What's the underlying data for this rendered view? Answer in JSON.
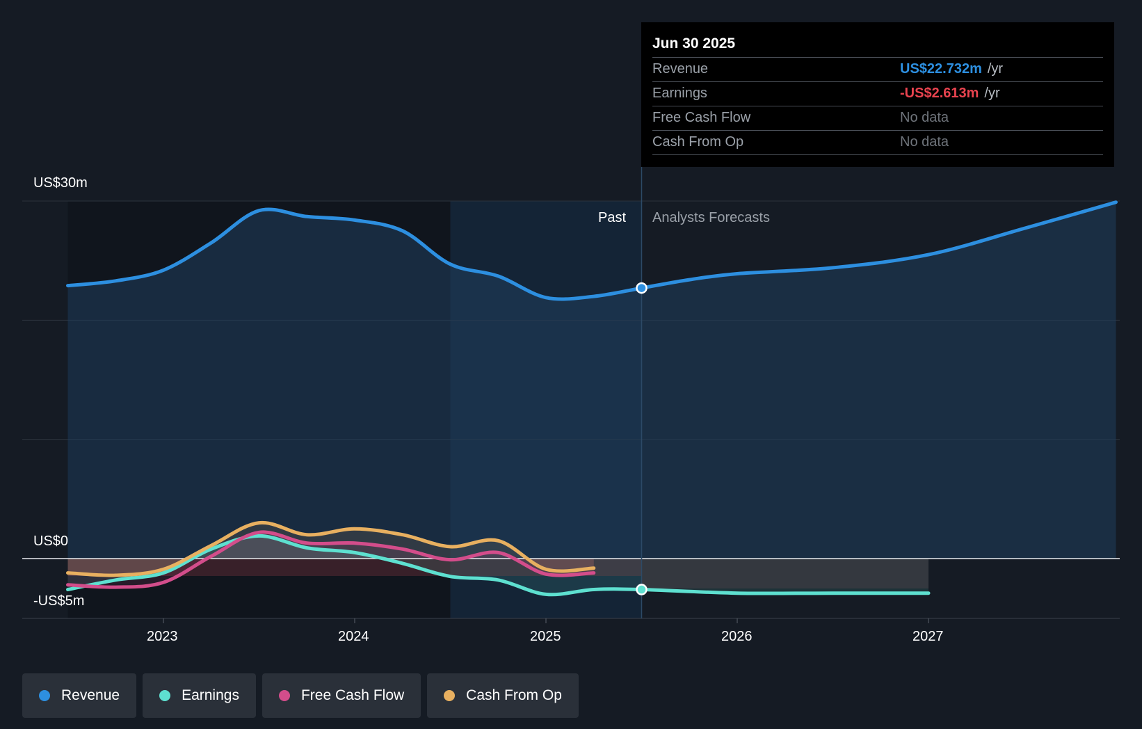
{
  "tooltip": {
    "date": "Jun 30 2025",
    "rows": [
      {
        "label": "Revenue",
        "value": "US$22.732m",
        "unit": "/yr",
        "color": "#2d8fe0"
      },
      {
        "label": "Earnings",
        "value": "-US$2.613m",
        "unit": "/yr",
        "color": "#e8434f"
      },
      {
        "label": "Free Cash Flow",
        "value": "No data",
        "unit": "",
        "color": "#6f747b"
      },
      {
        "label": "Cash From Op",
        "value": "No data",
        "unit": "",
        "color": "#6f747b"
      }
    ]
  },
  "labels": {
    "past": "Past",
    "forecast": "Analysts Forecasts"
  },
  "legend": [
    {
      "label": "Revenue",
      "color": "#2d8fe0"
    },
    {
      "label": "Earnings",
      "color": "#5ee0d0"
    },
    {
      "label": "Free Cash Flow",
      "color": "#d34d8b"
    },
    {
      "label": "Cash From Op",
      "color": "#e8b060"
    }
  ],
  "chart_data": {
    "type": "line",
    "title": "",
    "xlabel": "",
    "ylabel": "",
    "ylim": [
      -5,
      30
    ],
    "y_ticks": [
      {
        "value": 30,
        "label": "US$30m"
      },
      {
        "value": 0,
        "label": "US$0"
      },
      {
        "value": -5,
        "label": "-US$5m"
      }
    ],
    "x_ticks": [
      {
        "value": 2023,
        "label": "2023"
      },
      {
        "value": 2024,
        "label": "2024"
      },
      {
        "value": 2025,
        "label": "2025"
      },
      {
        "value": 2026,
        "label": "2026"
      },
      {
        "value": 2027,
        "label": "2027"
      }
    ],
    "xlim": [
      2022.25,
      2027.98
    ],
    "past_end": 2025.5,
    "highlight_start": 2024.5,
    "series": [
      {
        "name": "Revenue",
        "color": "#2d8fe0",
        "points": [
          [
            2022.5,
            22.9
          ],
          [
            2022.75,
            23.3
          ],
          [
            2023.0,
            24.2
          ],
          [
            2023.25,
            26.5
          ],
          [
            2023.5,
            29.2
          ],
          [
            2023.75,
            28.7
          ],
          [
            2024.0,
            28.4
          ],
          [
            2024.25,
            27.5
          ],
          [
            2024.5,
            24.7
          ],
          [
            2024.75,
            23.7
          ],
          [
            2025.0,
            21.9
          ],
          [
            2025.25,
            22.0
          ],
          [
            2025.5,
            22.7
          ],
          [
            2025.75,
            23.4
          ],
          [
            2026.0,
            23.9
          ],
          [
            2026.5,
            24.4
          ],
          [
            2027.0,
            25.5
          ],
          [
            2027.5,
            27.7
          ],
          [
            2027.98,
            29.9
          ]
        ]
      },
      {
        "name": "Earnings",
        "color": "#5ee0d0",
        "points": [
          [
            2022.5,
            -2.6
          ],
          [
            2022.75,
            -1.8
          ],
          [
            2023.0,
            -1.2
          ],
          [
            2023.25,
            0.8
          ],
          [
            2023.5,
            1.9
          ],
          [
            2023.75,
            0.9
          ],
          [
            2024.0,
            0.5
          ],
          [
            2024.25,
            -0.4
          ],
          [
            2024.5,
            -1.5
          ],
          [
            2024.75,
            -1.8
          ],
          [
            2025.0,
            -3.0
          ],
          [
            2025.25,
            -2.6
          ],
          [
            2025.5,
            -2.6
          ],
          [
            2026.0,
            -2.9
          ],
          [
            2026.5,
            -2.9
          ],
          [
            2027.0,
            -2.9
          ]
        ]
      },
      {
        "name": "Free Cash Flow",
        "color": "#d34d8b",
        "points": [
          [
            2022.5,
            -2.2
          ],
          [
            2022.75,
            -2.4
          ],
          [
            2023.0,
            -2.0
          ],
          [
            2023.25,
            0.2
          ],
          [
            2023.5,
            2.2
          ],
          [
            2023.75,
            1.3
          ],
          [
            2024.0,
            1.3
          ],
          [
            2024.25,
            0.8
          ],
          [
            2024.5,
            -0.1
          ],
          [
            2024.75,
            0.5
          ],
          [
            2025.0,
            -1.3
          ],
          [
            2025.25,
            -1.2
          ]
        ]
      },
      {
        "name": "Cash From Op",
        "color": "#e8b060",
        "points": [
          [
            2022.5,
            -1.2
          ],
          [
            2022.75,
            -1.4
          ],
          [
            2023.0,
            -0.9
          ],
          [
            2023.25,
            1.1
          ],
          [
            2023.5,
            3.0
          ],
          [
            2023.75,
            2.0
          ],
          [
            2024.0,
            2.5
          ],
          [
            2024.25,
            2.0
          ],
          [
            2024.5,
            1.0
          ],
          [
            2024.75,
            1.5
          ],
          [
            2025.0,
            -0.9
          ],
          [
            2025.25,
            -0.8
          ]
        ]
      }
    ]
  }
}
